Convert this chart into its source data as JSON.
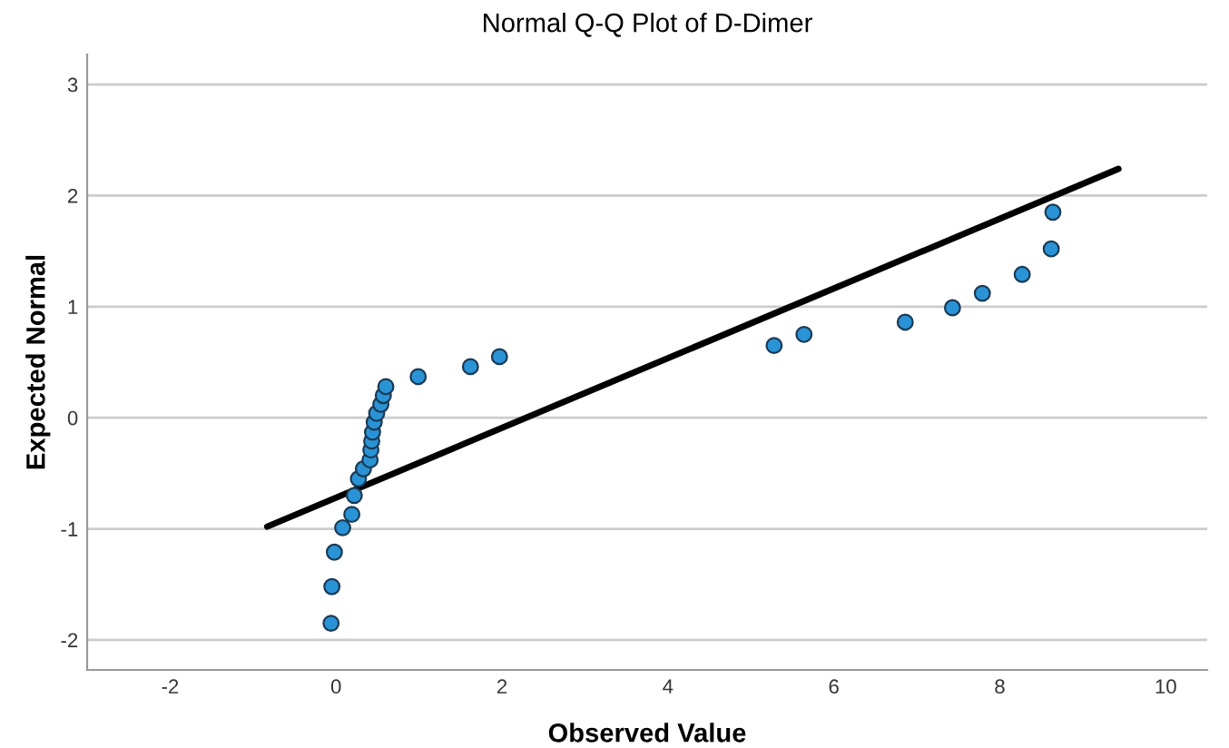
{
  "chart_data": {
    "type": "scatter",
    "title": "Normal Q-Q Plot of D-Dimer",
    "xlabel": "Observed Value",
    "ylabel": "Expected Normal",
    "xlim": [
      -3,
      10.5
    ],
    "xticks": [
      -2,
      0,
      2,
      4,
      6,
      8,
      10
    ],
    "ylim": [
      -2.27,
      3.27
    ],
    "yticks": [
      -2,
      -1,
      0,
      1,
      2,
      3
    ],
    "grid": "y",
    "legend": false,
    "series": [
      {
        "marker": "circle",
        "color": "#2a93d5",
        "x": [
          -0.06,
          -0.05,
          -0.02,
          0.08,
          0.19,
          0.22,
          0.27,
          0.33,
          0.41,
          0.42,
          0.43,
          0.44,
          0.46,
          0.49,
          0.54,
          0.57,
          0.6,
          0.99,
          1.62,
          1.97,
          5.28,
          5.64,
          6.86,
          7.43,
          7.79,
          8.27,
          8.62,
          8.64
        ],
        "values": [
          -1.85,
          -1.52,
          -1.21,
          -0.99,
          -0.87,
          -0.7,
          -0.55,
          -0.46,
          -0.38,
          -0.29,
          -0.21,
          -0.13,
          -0.04,
          0.04,
          0.12,
          0.2,
          0.28,
          0.37,
          0.46,
          0.55,
          0.65,
          0.75,
          0.86,
          0.99,
          1.12,
          1.29,
          1.52,
          1.85
        ]
      },
      {
        "type": "line",
        "color": "#000000",
        "x": [
          -0.83,
          9.43
        ],
        "values": [
          -0.98,
          2.24
        ]
      }
    ]
  }
}
